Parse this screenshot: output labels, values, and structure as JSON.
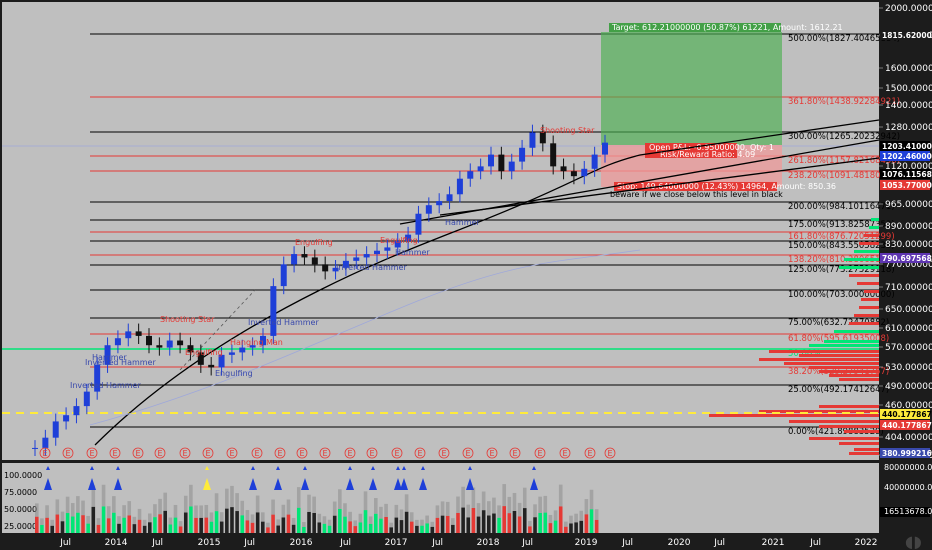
{
  "colors": {
    "background": "#bfbfbf",
    "frame": "#1c1c1c",
    "axis_text": "#ffffff",
    "fib_line": "#000000",
    "fib_red_line": "#e53935",
    "green_line": "#00e676",
    "candle_up": "#1e3fd8",
    "candle_down": "#111111",
    "volume_up": "#00e676",
    "volume_down": "#e53935",
    "volume_neutral": "#888888",
    "target_zone": "#4caf50",
    "stop_zone": "#ef9a9a",
    "ma_line": "#000000",
    "faint_line": "#9fa8da",
    "yellow_dash": "#ffeb3b"
  },
  "chart_data": [
    {
      "type": "line",
      "title": "",
      "note": "Price chart with Fibonacci extension levels and long position tool",
      "x_axis_labels": [
        "Jul",
        "2014",
        "Jul",
        "2015",
        "Jul",
        "2016",
        "Jul",
        "2017",
        "Jul",
        "2018",
        "Jul",
        "2019",
        "Jul",
        "2020",
        "Jul",
        "2021",
        "Jul",
        "2022"
      ],
      "y_axis_labels": [
        "2000.00000000",
        "1800.00000000",
        "1600.00000000",
        "1500.00000000",
        "1400.00000000",
        "1280.00000000",
        "1120.00000000",
        "965.00000000",
        "890.00000000",
        "830.00000000",
        "770.00000000",
        "710.00000000",
        "650.00000000",
        "610.00000000",
        "570.00000000",
        "530.00000000",
        "490.00000000",
        "460.00000000",
        "404.00000000",
        "370.00000000"
      ],
      "price_tags": [
        {
          "text": "1815.62000000",
          "color": "#1c1c1c",
          "text_color": "#ffffff"
        },
        {
          "text": "1203.41000000",
          "color": "#000000",
          "text_color": "#ffffff"
        },
        {
          "text": "1202.46000000",
          "color": "#1e3fd8",
          "text_color": "#ffffff"
        },
        {
          "text": "1076.11568649",
          "color": "#000000",
          "text_color": "#ffffff"
        },
        {
          "text": "1053.77000000",
          "color": "#e53935",
          "text_color": "#ffffff"
        },
        {
          "text": "790.69756886",
          "color": "#5e35b1",
          "text_color": "#ffffff"
        },
        {
          "text": "440.17786705",
          "color": "#ffeb3b",
          "text_color": "#000000"
        },
        {
          "text": "440.17786705",
          "color": "#e53935",
          "text_color": "#ffffff"
        },
        {
          "text": "380.99921610",
          "color": "#3949ab",
          "text_color": "#ffffff"
        }
      ],
      "fib_levels": [
        {
          "label": "500.00%(1827.40465884)",
          "color": "#000000"
        },
        {
          "label": "361.80%(1438.92284921)",
          "color": "#e53935"
        },
        {
          "label": "300.00%(1265.20232942)",
          "color": "#000000"
        },
        {
          "label": "261.80%(1157.82168450)",
          "color": "#e53935"
        },
        {
          "label": "238.20%(1091.48180963)",
          "color": "#e53935"
        },
        {
          "label": "200.00%(984.10116471)",
          "color": "#000000"
        },
        {
          "label": "175.00%(913.82587353)",
          "color": "#000000"
        },
        {
          "label": "161.80%(876.72051299)",
          "color": "#e53935"
        },
        {
          "label": "150.00%(843.55058235)",
          "color": "#000000"
        },
        {
          "label": "138.20%(810.38065171)",
          "color": "#e53935"
        },
        {
          "label": "125.00%(773.27529118)",
          "color": "#000000"
        },
        {
          "label": "100.00%(703.00000000)",
          "color": "#000000"
        },
        {
          "label": "75.00%(632.72470882)",
          "color": "#000000"
        },
        {
          "label": "61.80%(595.61935008)",
          "color": "#e53935"
        },
        {
          "label": "50.00%",
          "color": "#00e676"
        },
        {
          "label": "38.20%(529.27941757)",
          "color": "#e53935"
        },
        {
          "label": "25.00%(492.17412647)",
          "color": "#000000"
        },
        {
          "label": "0.00%(421.89883529)",
          "color": "#000000"
        }
      ],
      "patterns": [
        "Engulfing",
        "Shooting Star",
        "Inverted Hammer",
        "Inverted Hammer",
        "Hammer",
        "Engulfing",
        "Hanging Man",
        "Engulfing",
        "Inverted Hammer",
        "Inverted Hammer",
        "Hammer",
        "Hammer",
        "Engulfing",
        "Shooting Star"
      ],
      "position": {
        "target_text": "Target: 612.21000000 (50.87%) 61221, Amount: 1612.21",
        "pl_text": "Open P&L: -0.95000000, Qty: 1",
        "rr_text": "Risk/Reward Ratio: 4.09",
        "stop_text": "Stop: 149.64000000 (12.43%) 14964, Amount: 850.36",
        "note_text": "beware if we close below this level in black"
      },
      "series": [
        {
          "name": "",
          "close": [
            380,
            395,
            420,
            430,
            445,
            470,
            520,
            560,
            575,
            590,
            580,
            560,
            555,
            570,
            560,
            545,
            520,
            515,
            540,
            545,
            555,
            560,
            580,
            700,
            760,
            790,
            780,
            760,
            740,
            750,
            770,
            780,
            790,
            800,
            810,
            830,
            850,
            920,
            950,
            965,
            990,
            1050,
            1080,
            1100,
            1150,
            1080,
            1120,
            1180,
            1250,
            1200,
            1100,
            1080,
            1060,
            1090,
            1150,
            1203
          ]
        }
      ]
    },
    {
      "type": "bar",
      "title": "",
      "y_axis_labels": [
        "100.0000",
        "75.0000",
        "50.0000",
        "25.0000"
      ],
      "right_labels": [
        "80000000.0000",
        "40000000.0000",
        "16513678.0000"
      ],
      "note": "Volume histogram with bullish/bearish pattern markers"
    }
  ],
  "event_marker": "E"
}
